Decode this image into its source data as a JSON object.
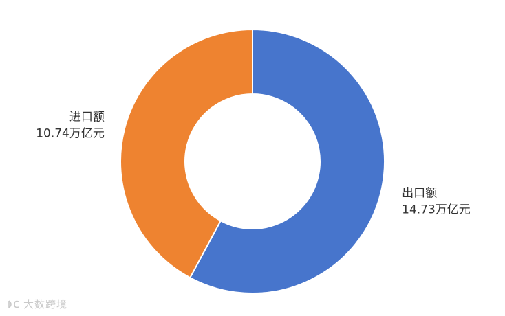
{
  "chart_data": {
    "type": "pie",
    "variant": "donut",
    "title": "",
    "slices": [
      {
        "name": "出口额",
        "value": 14.73,
        "value_label": "14.73万亿元",
        "color": "#4775CC"
      },
      {
        "name": "进口额",
        "value": 10.74,
        "value_label": "10.74万亿元",
        "color": "#EE8330"
      }
    ],
    "legend": "none"
  },
  "watermark": {
    "text": "大数跨境",
    "logo_icon": "ds-logo-icon"
  }
}
